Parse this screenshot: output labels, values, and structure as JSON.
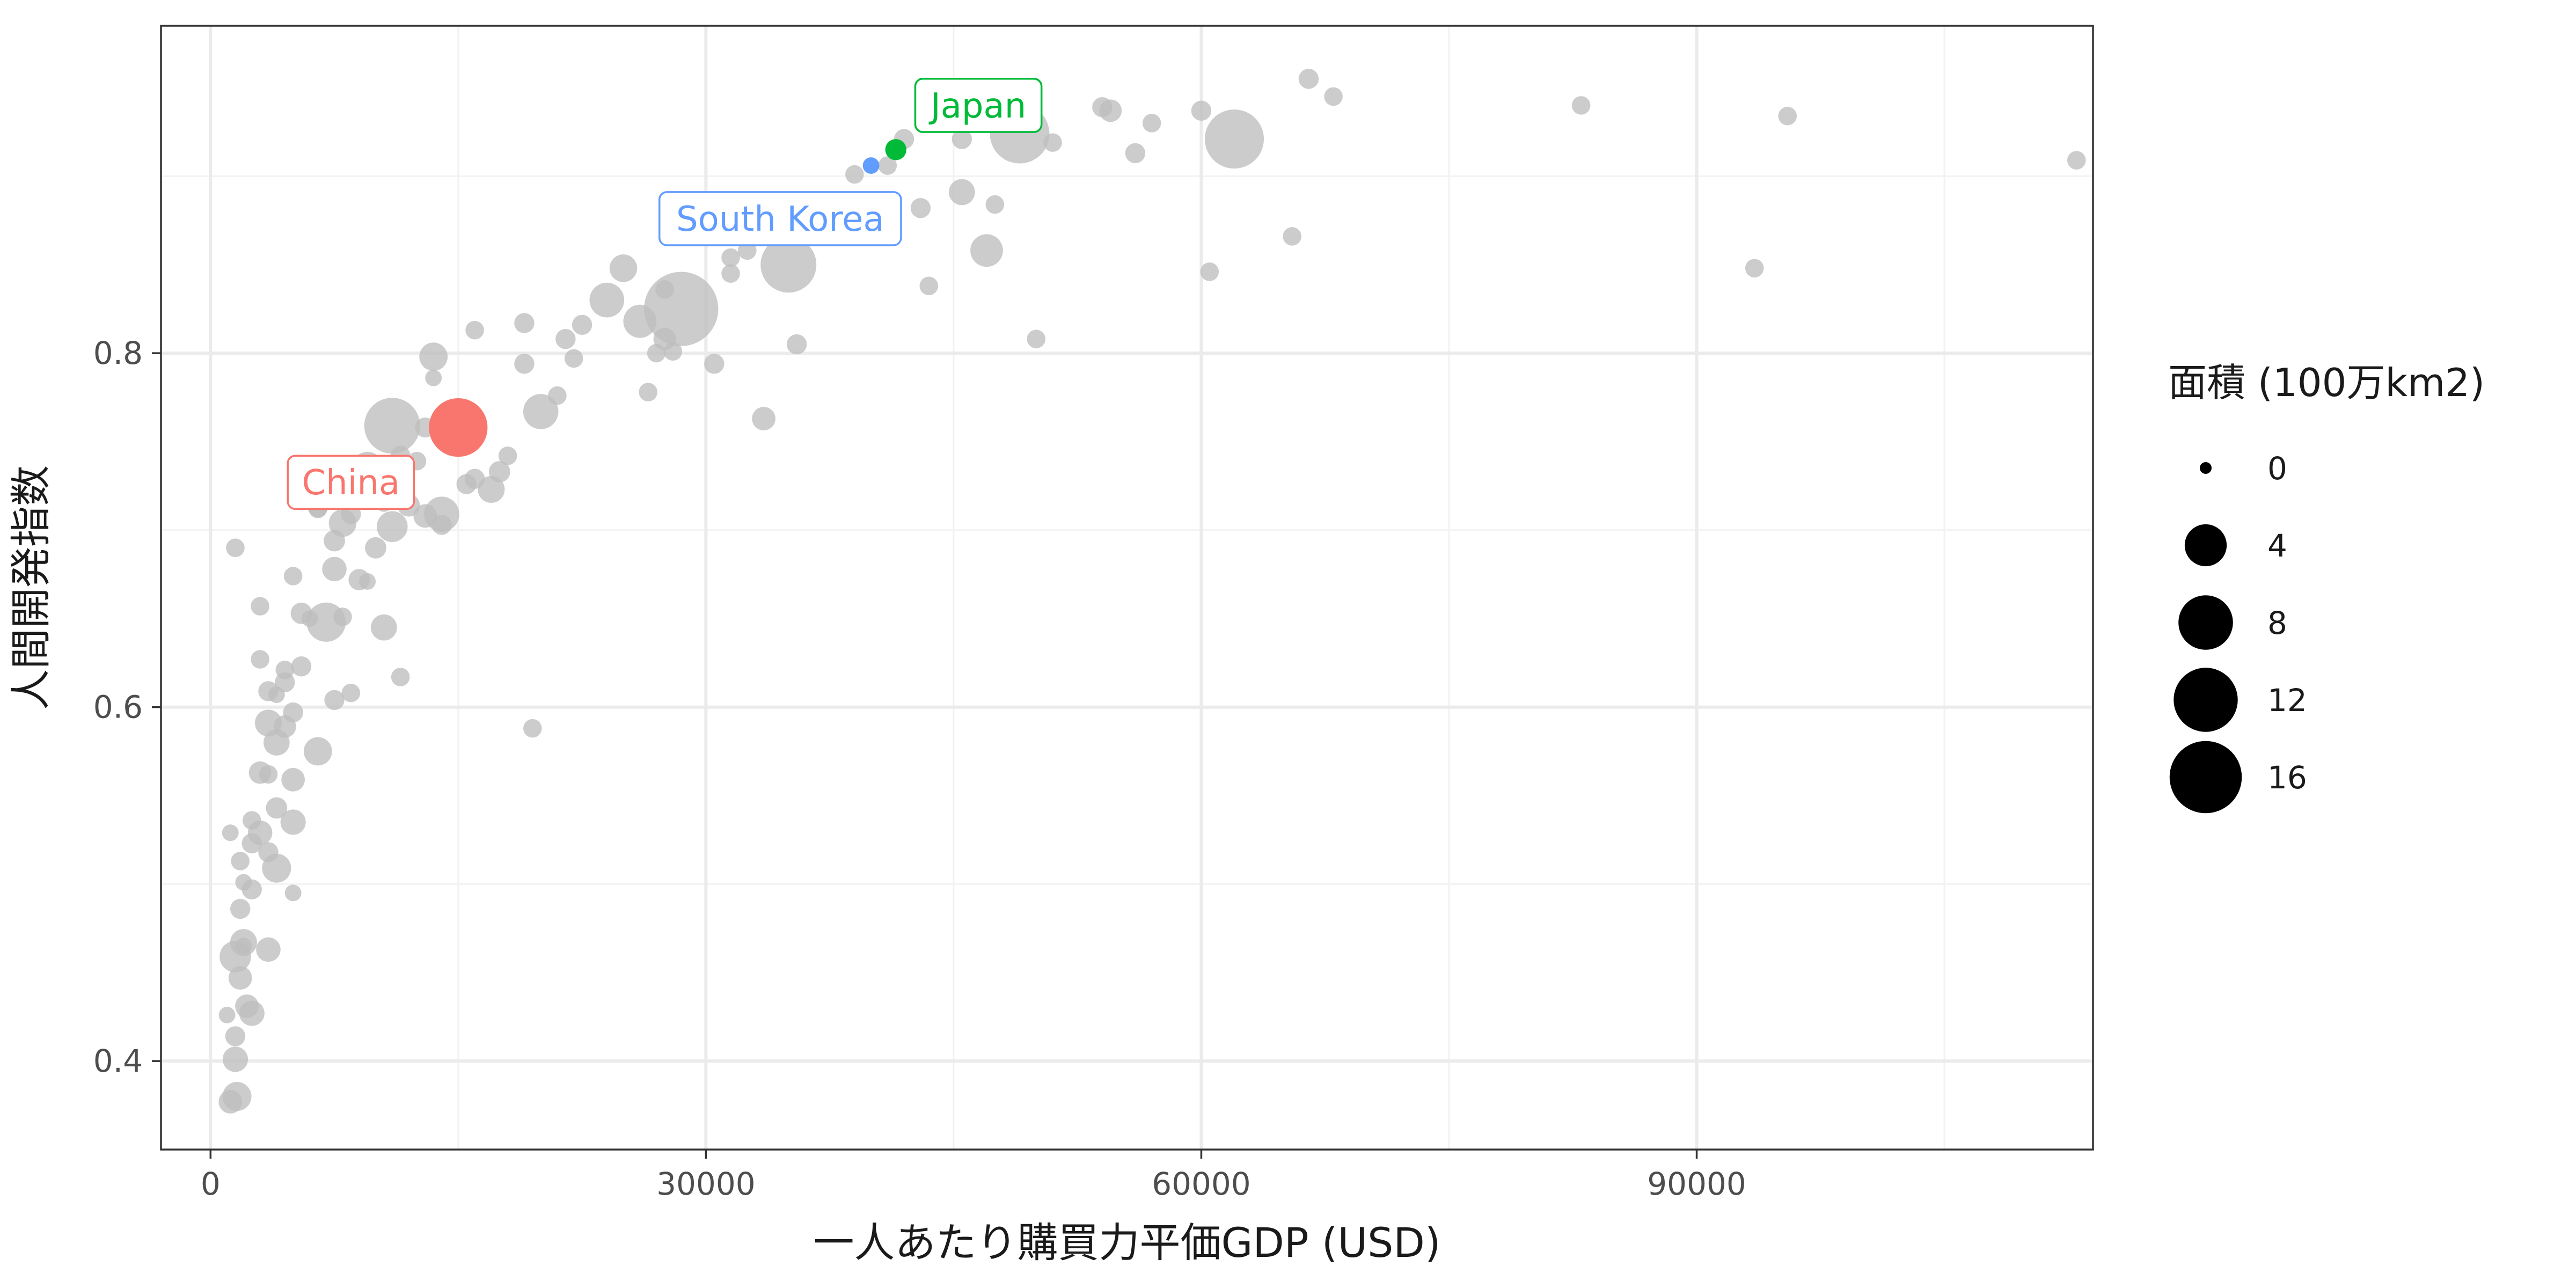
{
  "chart_data": {
    "type": "scatter",
    "xlabel": "一人あたり購買力平価GDP (USD)",
    "ylabel": "人間開発指数",
    "xlim": [
      -3000,
      114000
    ],
    "ylim": [
      0.35,
      0.985
    ],
    "x_ticks": [
      0,
      30000,
      60000,
      90000
    ],
    "x_tick_labels": [
      "0",
      "30000",
      "60000",
      "90000"
    ],
    "x_minor_ticks": [
      15000,
      45000,
      75000,
      105000
    ],
    "y_ticks": [
      0.4,
      0.6,
      0.8
    ],
    "y_tick_labels": [
      "0.4",
      "0.6",
      "0.8"
    ],
    "y_minor_ticks": [
      0.5,
      0.7,
      0.9
    ],
    "grid": true,
    "legend": {
      "title": "面積 (100万km2)",
      "placement": "right",
      "entries": [
        {
          "label": "0",
          "value": 0
        },
        {
          "label": "4",
          "value": 4
        },
        {
          "label": "8",
          "value": 8
        },
        {
          "label": "12",
          "value": 12
        },
        {
          "label": "16",
          "value": 16
        }
      ]
    },
    "colors": {
      "background_points": "#bebebe",
      "china": "#F8766D",
      "japan": "#00BA38",
      "south_korea": "#619CFF",
      "panel_border": "#333333",
      "grid": "#ebebeb"
    },
    "highlighted": [
      {
        "name": "China",
        "x": 15000,
        "y": 0.758,
        "area": 9.6,
        "color": "#F8766D",
        "label_x": 8500,
        "label_y": 0.727
      },
      {
        "name": "Japan",
        "x": 41500,
        "y": 0.915,
        "area": 0.38,
        "color": "#00BA38",
        "label_x": 46500,
        "label_y": 0.94
      },
      {
        "name": "South Korea",
        "x": 40000,
        "y": 0.906,
        "area": 0.1,
        "color": "#619CFF",
        "label_x": 34500,
        "label_y": 0.876
      }
    ],
    "points": [
      [
        49000,
        0.924,
        9.98
      ],
      [
        62000,
        0.921,
        9.8
      ],
      [
        28500,
        0.825,
        17.1
      ],
      [
        35000,
        0.85,
        8.5
      ],
      [
        11000,
        0.759,
        8.5
      ],
      [
        14500,
        0.76,
        2.8
      ],
      [
        20000,
        0.767,
        2.4
      ],
      [
        14000,
        0.709,
        2.4
      ],
      [
        7000,
        0.648,
        3.3
      ],
      [
        24000,
        0.83,
        2.3
      ],
      [
        26000,
        0.818,
        2.0
      ],
      [
        9500,
        0.735,
        1.9
      ],
      [
        11000,
        0.702,
        1.6
      ],
      [
        1500,
        0.459,
        1.7
      ],
      [
        4000,
        0.509,
        1.3
      ],
      [
        1600,
        0.38,
        1.3
      ],
      [
        13500,
        0.798,
        1.2
      ],
      [
        47000,
        0.858,
        1.9
      ],
      [
        45500,
        0.891,
        0.9
      ],
      [
        25000,
        0.848,
        1.1
      ],
      [
        6500,
        0.575,
        1.2
      ],
      [
        3500,
        0.591,
        1.0
      ],
      [
        8000,
        0.704,
        1.1
      ],
      [
        17000,
        0.723,
        1.0
      ],
      [
        2000,
        0.467,
        1.0
      ],
      [
        4000,
        0.58,
        0.9
      ],
      [
        10500,
        0.645,
        0.9
      ],
      [
        5000,
        0.535,
        0.8
      ],
      [
        2500,
        0.427,
        0.8
      ],
      [
        1500,
        0.401,
        0.8
      ],
      [
        3500,
        0.463,
        0.7
      ],
      [
        7500,
        0.678,
        0.7
      ],
      [
        33500,
        0.763,
        0.6
      ],
      [
        13000,
        0.708,
        0.6
      ],
      [
        5000,
        0.559,
        0.6
      ],
      [
        3000,
        0.529,
        0.7
      ],
      [
        1800,
        0.447,
        0.6
      ],
      [
        1200,
        0.377,
        0.6
      ],
      [
        2200,
        0.431,
        0.6
      ],
      [
        4500,
        0.589,
        0.5
      ],
      [
        54500,
        0.937,
        0.5
      ],
      [
        27500,
        0.808,
        0.5
      ],
      [
        12000,
        0.714,
        0.5
      ],
      [
        3000,
        0.563,
        0.5
      ],
      [
        9000,
        0.672,
        0.4
      ],
      [
        5500,
        0.653,
        0.4
      ],
      [
        7500,
        0.694,
        0.4
      ],
      [
        10000,
        0.69,
        0.4
      ],
      [
        17500,
        0.733,
        0.4
      ],
      [
        4000,
        0.543,
        0.4
      ],
      [
        6500,
        0.713,
        0.3
      ],
      [
        2500,
        0.497,
        0.3
      ],
      [
        3500,
        0.518,
        0.3
      ],
      [
        1500,
        0.414,
        0.3
      ],
      [
        2500,
        0.523,
        0.3
      ],
      [
        1800,
        0.486,
        0.3
      ],
      [
        19000,
        0.817,
        0.3
      ],
      [
        22500,
        0.816,
        0.3
      ],
      [
        16000,
        0.729,
        0.3
      ],
      [
        11500,
        0.742,
        0.3
      ],
      [
        13000,
        0.758,
        0.3
      ],
      [
        4500,
        0.614,
        0.3
      ],
      [
        3500,
        0.609,
        0.3
      ],
      [
        7500,
        0.604,
        0.3
      ],
      [
        5000,
        0.597,
        0.3
      ],
      [
        43000,
        0.882,
        0.3
      ],
      [
        56000,
        0.913,
        0.3
      ],
      [
        54000,
        0.939,
        0.3
      ],
      [
        66500,
        0.955,
        0.3
      ],
      [
        60000,
        0.937,
        0.3
      ],
      [
        45500,
        0.921,
        0.3
      ],
      [
        42000,
        0.921,
        0.3
      ],
      [
        35500,
        0.805,
        0.3
      ],
      [
        21500,
        0.808,
        0.3
      ],
      [
        30500,
        0.794,
        0.3
      ],
      [
        19000,
        0.794,
        0.3
      ],
      [
        15500,
        0.726,
        0.3
      ],
      [
        14000,
        0.703,
        0.3
      ],
      [
        10000,
        0.728,
        0.3
      ],
      [
        8500,
        0.709,
        0.3
      ],
      [
        5500,
        0.623,
        0.3
      ],
      [
        2500,
        0.536,
        0.2
      ],
      [
        1800,
        0.513,
        0.2
      ],
      [
        3500,
        0.562,
        0.2
      ],
      [
        5000,
        0.674,
        0.2
      ],
      [
        3000,
        0.657,
        0.2
      ],
      [
        8000,
        0.651,
        0.2
      ],
      [
        11500,
        0.617,
        0.2
      ],
      [
        8500,
        0.608,
        0.2
      ],
      [
        19500,
        0.588,
        0.2
      ],
      [
        1500,
        0.69,
        0.2
      ],
      [
        65500,
        0.866,
        0.2
      ],
      [
        60500,
        0.846,
        0.2
      ],
      [
        83000,
        0.94,
        0.2
      ],
      [
        93500,
        0.848,
        0.2
      ],
      [
        95500,
        0.934,
        0.2
      ],
      [
        113000,
        0.909,
        0.2
      ],
      [
        68000,
        0.945,
        0.2
      ],
      [
        57000,
        0.93,
        0.2
      ],
      [
        50000,
        0.808,
        0.2
      ],
      [
        47500,
        0.884,
        0.2
      ],
      [
        51000,
        0.919,
        0.2
      ],
      [
        39000,
        0.901,
        0.2
      ],
      [
        41000,
        0.906,
        0.2
      ],
      [
        31500,
        0.854,
        0.2
      ],
      [
        32500,
        0.858,
        0.2
      ],
      [
        28000,
        0.801,
        0.2
      ],
      [
        26500,
        0.778,
        0.2
      ],
      [
        21000,
        0.776,
        0.2
      ],
      [
        18000,
        0.742,
        0.2
      ],
      [
        16000,
        0.813,
        0.2
      ],
      [
        27500,
        0.836,
        0.2
      ],
      [
        22000,
        0.797,
        0.2
      ],
      [
        31500,
        0.845,
        0.2
      ],
      [
        43500,
        0.838,
        0.2
      ],
      [
        27000,
        0.8,
        0.2
      ],
      [
        12500,
        0.739,
        0.2
      ],
      [
        6500,
        0.712,
        0.2
      ],
      [
        4500,
        0.621,
        0.2
      ],
      [
        3000,
        0.627,
        0.2
      ],
      [
        2000,
        0.501,
        0.1
      ],
      [
        5000,
        0.495,
        0.1
      ],
      [
        1000,
        0.426,
        0.1
      ],
      [
        1200,
        0.529,
        0.1
      ],
      [
        6000,
        0.65,
        0.1
      ],
      [
        9500,
        0.671,
        0.1
      ],
      [
        4000,
        0.607,
        0.1
      ],
      [
        10500,
        0.715,
        0.1
      ],
      [
        13500,
        0.786,
        0.1
      ],
      [
        15500,
        0.76,
        0.1
      ],
      [
        2000,
        0.465,
        0.1
      ]
    ]
  }
}
